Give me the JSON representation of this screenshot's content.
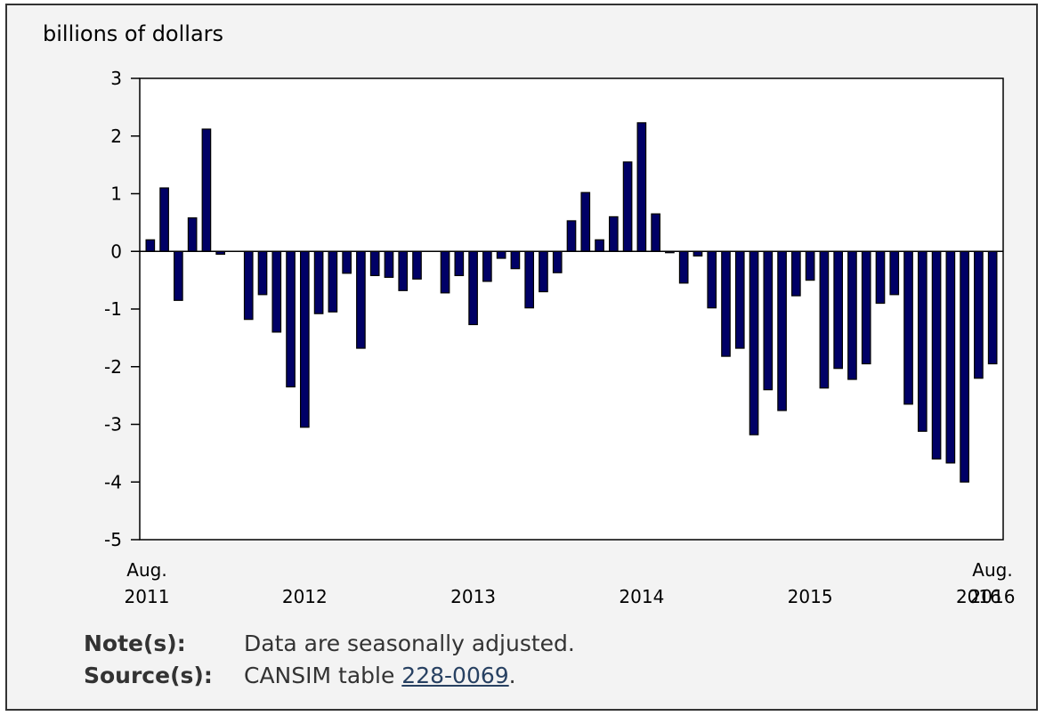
{
  "chart_data": {
    "type": "bar",
    "y_unit_label": "billions of dollars",
    "ylim": [
      -5,
      3
    ],
    "yticks": [
      3,
      2,
      1,
      0,
      -1,
      -2,
      -3,
      -4,
      -5
    ],
    "grid": false,
    "bar_color": "#000066",
    "period": {
      "start": "2011-08",
      "end": "2016-08",
      "frequency": "monthly"
    },
    "x_tick_labels": [
      {
        "label": "Aug.\n2011",
        "month_index": 0
      },
      {
        "label": "2012",
        "month_index": 11
      },
      {
        "label": "2013",
        "month_index": 23
      },
      {
        "label": "2014",
        "month_index": 35
      },
      {
        "label": "2015",
        "month_index": 47
      },
      {
        "label": "2016",
        "month_index": 59
      },
      {
        "label": "Aug.\n2016",
        "month_index": 60
      }
    ],
    "values": [
      0.2,
      1.1,
      -0.85,
      0.58,
      2.12,
      -0.05,
      0,
      -1.18,
      -0.75,
      -1.4,
      -2.35,
      -3.05,
      -1.08,
      -1.05,
      -0.38,
      -1.68,
      -0.42,
      -0.45,
      -0.68,
      -0.48,
      0,
      -0.72,
      -0.42,
      -1.27,
      -0.52,
      -0.12,
      -0.3,
      -0.98,
      -0.7,
      -0.37,
      0.53,
      1.02,
      0.2,
      0.6,
      1.55,
      2.23,
      0.65,
      -0.02,
      -0.55,
      -0.08,
      -0.98,
      -1.82,
      -1.68,
      -3.18,
      -2.4,
      -2.76,
      -0.77,
      -0.5,
      -2.37,
      -2.03,
      -2.22,
      -1.95,
      -0.9,
      -0.75,
      -2.65,
      -3.12,
      -3.6,
      -3.67,
      -4.0,
      -2.2,
      -1.95
    ]
  },
  "notes": {
    "note_label": "Note(s):",
    "note_text": "Data are seasonally adjusted.",
    "source_label": "Source(s):",
    "source_prefix": "CANSIM table ",
    "source_link": "228-0069",
    "source_suffix": "."
  }
}
